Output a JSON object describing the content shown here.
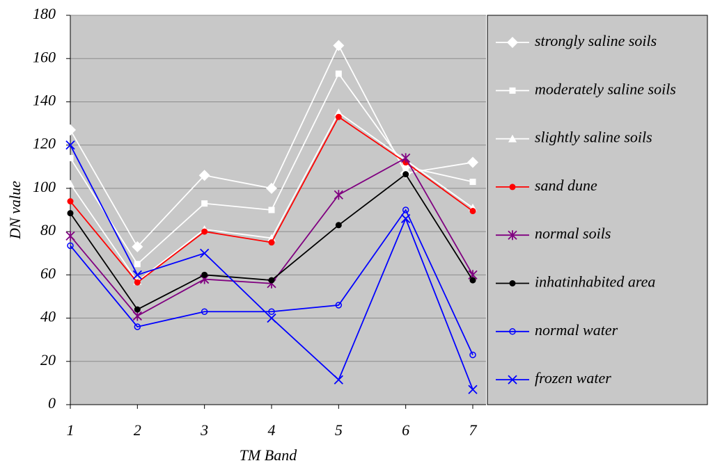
{
  "chart_data": {
    "type": "line",
    "x_label": "TM Band",
    "y_label": "DN value",
    "x": [
      1,
      2,
      3,
      4,
      5,
      6,
      7
    ],
    "xlim": [
      1,
      7
    ],
    "xticks": [
      1,
      2,
      3,
      4,
      5,
      6,
      7
    ],
    "ylim": [
      0,
      180
    ],
    "yticks": [
      0,
      20,
      40,
      60,
      80,
      100,
      120,
      140,
      160,
      180
    ],
    "grid": true,
    "legend": "right",
    "series": [
      {
        "name": "strongly saline soils",
        "color": "#ffffff",
        "marker": "diamond",
        "values": [
          127,
          73,
          106,
          100,
          166,
          107,
          112
        ]
      },
      {
        "name": "moderately saline soils",
        "color": "#ffffff",
        "marker": "square",
        "values": [
          114,
          65,
          93,
          90,
          153,
          110,
          103
        ]
      },
      {
        "name": "slightly saline soils",
        "color": "#ffffff",
        "marker": "triangle",
        "values": [
          102,
          57,
          81,
          77,
          135,
          113,
          91
        ]
      },
      {
        "name": "sand dune",
        "color": "#ff0000",
        "marker": "circle",
        "values": [
          94,
          56.5,
          80,
          75,
          133,
          112,
          89.5
        ]
      },
      {
        "name": "normal soils",
        "color": "#800080",
        "marker": "star",
        "values": [
          78,
          41,
          58,
          56,
          97,
          114,
          60
        ]
      },
      {
        "name": "inhatinhabited area",
        "color": "#000000",
        "marker": "circle",
        "values": [
          88.5,
          44,
          60,
          57.5,
          83,
          106.5,
          57.5
        ]
      },
      {
        "name": "normal water",
        "color": "#0000ff",
        "marker": "open-circle",
        "values": [
          73.5,
          36,
          43,
          43,
          46,
          90,
          23
        ]
      },
      {
        "name": "frozen water",
        "color": "#0000ff",
        "marker": "x",
        "values": [
          120,
          60,
          70,
          40,
          11.5,
          86,
          7
        ]
      }
    ]
  }
}
